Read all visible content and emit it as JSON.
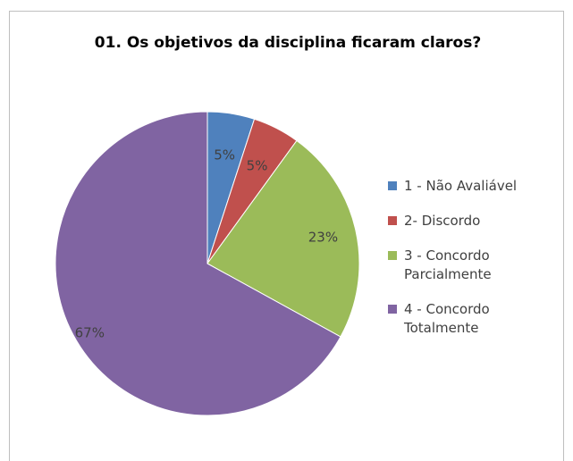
{
  "chart_data": {
    "type": "pie",
    "title": "01. Os objetivos da disciplina ficaram claros?",
    "categories": [
      "1 -  Não Avaliável",
      "2- Discordo",
      "3 - Concordo Parcialmente",
      "4 - Concordo Totalmente"
    ],
    "values": [
      5,
      5,
      23,
      67
    ],
    "value_labels": [
      "5%",
      "5%",
      "23%",
      "67%"
    ],
    "colors": [
      "#4f81bd",
      "#c0504d",
      "#9bbb59",
      "#8064a2"
    ],
    "legend": "right"
  }
}
